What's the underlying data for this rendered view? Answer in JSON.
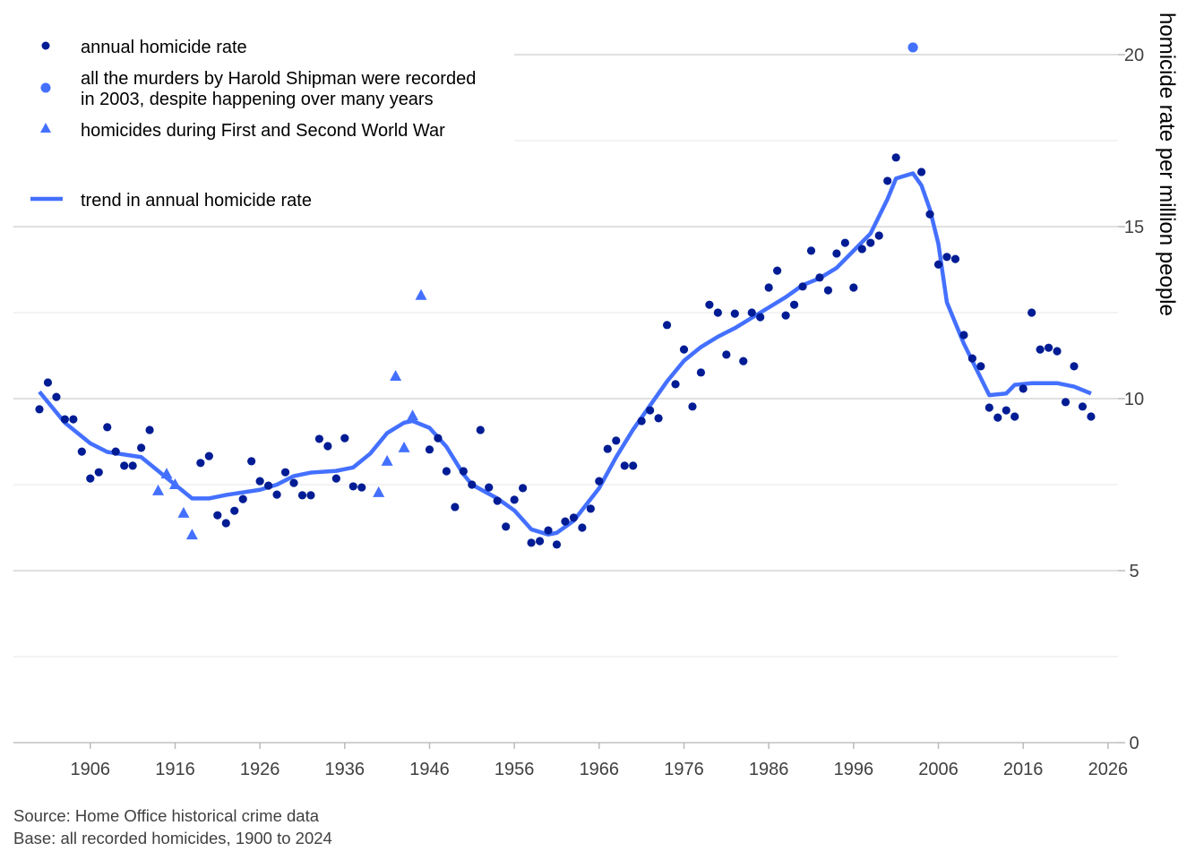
{
  "chart_data": {
    "type": "scatter",
    "title": "",
    "xlabel": "",
    "ylabel": "homicide rate per million people",
    "xlim": [
      1897,
      2028
    ],
    "ylim": [
      0,
      21
    ],
    "x_ticks": [
      "1906",
      "1916",
      "1926",
      "1936",
      "1946",
      "1956",
      "1966",
      "1976",
      "1986",
      "1996",
      "2006",
      "2016",
      "2026"
    ],
    "y_ticks": [
      "0",
      "5",
      "10",
      "15",
      "20"
    ],
    "grid": true,
    "y_axis_position": "right",
    "legend_position": "top-left",
    "colors": {
      "annual": "#001c94",
      "highlight": "#4470ff",
      "trend": "#4470ff",
      "grid": "#e3e3e3"
    },
    "series": [
      {
        "name": "annual homicide rate",
        "type": "scatter",
        "marker": "circle",
        "x": [
          1900,
          1901,
          1902,
          1903,
          1904,
          1905,
          1906,
          1907,
          1908,
          1909,
          1910,
          1911,
          1912,
          1913,
          1919,
          1920,
          1921,
          1922,
          1923,
          1924,
          1925,
          1926,
          1927,
          1928,
          1929,
          1930,
          1931,
          1932,
          1933,
          1934,
          1935,
          1936,
          1937,
          1938,
          1946,
          1947,
          1948,
          1949,
          1950,
          1951,
          1952,
          1953,
          1954,
          1955,
          1956,
          1957,
          1958,
          1959,
          1960,
          1961,
          1962,
          1963,
          1964,
          1965,
          1966,
          1967,
          1968,
          1969,
          1970,
          1971,
          1972,
          1973,
          1974,
          1975,
          1976,
          1977,
          1978,
          1979,
          1980,
          1981,
          1982,
          1983,
          1984,
          1985,
          1986,
          1987,
          1988,
          1989,
          1990,
          1991,
          1992,
          1993,
          1994,
          1995,
          1996,
          1997,
          1998,
          1999,
          2000,
          2001,
          2004,
          2005,
          2006,
          2007,
          2008,
          2009,
          2010,
          2011,
          2012,
          2013,
          2014,
          2015,
          2016,
          2017,
          2018,
          2019,
          2020,
          2021,
          2022,
          2023,
          2024
        ],
        "y": [
          9.69,
          10.47,
          10.05,
          9.4,
          9.4,
          8.46,
          7.68,
          7.86,
          9.17,
          8.46,
          8.05,
          8.05,
          8.57,
          9.09,
          8.13,
          8.33,
          6.61,
          6.38,
          6.74,
          7.08,
          8.18,
          7.6,
          7.47,
          7.21,
          7.86,
          7.55,
          7.19,
          7.19,
          8.83,
          8.62,
          7.68,
          8.85,
          7.45,
          7.42,
          8.52,
          8.85,
          7.89,
          6.85,
          7.89,
          7.5,
          9.09,
          7.42,
          7.03,
          6.28,
          7.06,
          7.4,
          5.81,
          5.86,
          6.17,
          5.76,
          6.43,
          6.54,
          6.25,
          6.8,
          7.6,
          8.54,
          8.78,
          8.05,
          8.05,
          9.35,
          9.66,
          9.43,
          12.14,
          10.42,
          11.43,
          9.77,
          10.76,
          12.73,
          12.5,
          11.28,
          12.47,
          11.09,
          12.5,
          12.37,
          13.23,
          13.72,
          12.42,
          12.73,
          13.26,
          14.3,
          13.52,
          13.15,
          14.22,
          14.53,
          13.23,
          14.35,
          14.53,
          14.74,
          16.33,
          17.01,
          16.59,
          15.36,
          13.9,
          14.12,
          14.06,
          11.85,
          11.17,
          10.94,
          9.74,
          9.45,
          9.66,
          9.48,
          10.29,
          12.5,
          11.43,
          11.48,
          11.38,
          9.9,
          10.94,
          9.77,
          9.48
        ]
      },
      {
        "name": "all the murders by Harold Shipman were recorded in 2003, despite happening over many years",
        "name_lines": [
          "all the murders by Harold Shipman were recorded",
          "in 2003, despite happening over many years"
        ],
        "type": "scatter",
        "marker": "circle",
        "x": [
          2003
        ],
        "y": [
          20.21
        ]
      },
      {
        "name": "homicides during First and Second World War",
        "type": "scatter",
        "marker": "triangle",
        "x": [
          1914,
          1915,
          1916,
          1917,
          1918,
          1940,
          1941,
          1942,
          1943,
          1944,
          1945
        ],
        "y": [
          7.32,
          7.81,
          7.5,
          6.67,
          6.04,
          7.27,
          8.18,
          10.65,
          8.57,
          9.5,
          13.0
        ]
      },
      {
        "name": "trend in annual homicide rate",
        "type": "line",
        "x": [
          1900,
          1903,
          1906,
          1908,
          1912,
          1915,
          1918,
          1920,
          1922,
          1926,
          1928,
          1930,
          1932,
          1935,
          1937,
          1939,
          1941,
          1943,
          1944,
          1946,
          1948,
          1950,
          1951,
          1954,
          1956,
          1958,
          1960,
          1961,
          1963,
          1966,
          1968,
          1970,
          1972,
          1974,
          1976,
          1978,
          1980,
          1982,
          1984,
          1986,
          1988,
          1990,
          1992,
          1994,
          1996,
          1998,
          2000,
          2001,
          2003,
          2004,
          2005,
          2006,
          2007,
          2009,
          2011,
          2012,
          2014,
          2015,
          2017,
          2020,
          2022,
          2024
        ],
        "y": [
          10.2,
          9.3,
          8.7,
          8.45,
          8.3,
          7.7,
          7.1,
          7.1,
          7.2,
          7.35,
          7.5,
          7.75,
          7.85,
          7.9,
          8.0,
          8.4,
          9.0,
          9.3,
          9.35,
          9.15,
          8.6,
          7.8,
          7.5,
          7.1,
          6.75,
          6.2,
          6.05,
          6.1,
          6.45,
          7.4,
          8.3,
          9.1,
          9.8,
          10.5,
          11.1,
          11.5,
          11.8,
          12.05,
          12.35,
          12.65,
          12.95,
          13.3,
          13.5,
          13.8,
          14.3,
          14.8,
          15.8,
          16.4,
          16.55,
          16.2,
          15.5,
          14.5,
          12.8,
          11.6,
          10.6,
          10.1,
          10.15,
          10.4,
          10.45,
          10.45,
          10.35,
          10.15
        ]
      }
    ]
  },
  "source": {
    "line1": "Source: Home Office historical crime data",
    "line2": "Base: all recorded homicides, 1900 to 2024"
  }
}
